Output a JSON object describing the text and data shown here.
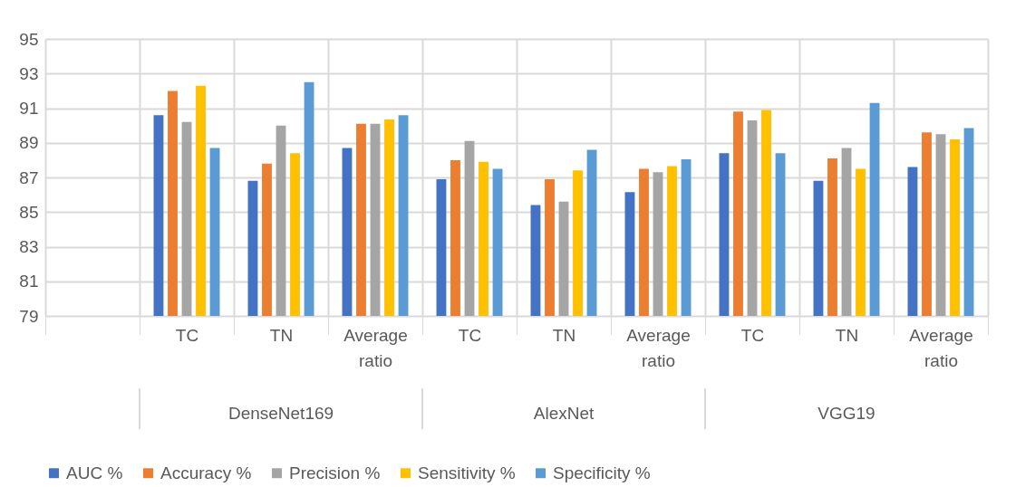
{
  "chart_data": {
    "type": "bar",
    "categories": [
      null,
      "TC",
      "TN",
      "Average ratio",
      "TC",
      "TN",
      "Average ratio",
      "TC",
      "TN",
      "Average ratio"
    ],
    "annotations": [
      "DenseNet169",
      "AlexNet",
      "VGG19"
    ],
    "series": [
      {
        "name": "AUC %",
        "color": "#4472c4",
        "values": [
          null,
          90.6,
          86.8,
          88.7,
          86.9,
          85.4,
          86.15,
          88.4,
          86.8,
          87.6
        ]
      },
      {
        "name": "Accuracy %",
        "color": "#ed7d31",
        "values": [
          null,
          92.0,
          87.8,
          90.1,
          88.0,
          86.9,
          87.5,
          90.8,
          88.1,
          89.6
        ]
      },
      {
        "name": "Precision %",
        "color": "#a5a5a5",
        "values": [
          null,
          90.2,
          90.0,
          90.1,
          89.1,
          85.6,
          87.3,
          90.3,
          88.7,
          89.5
        ]
      },
      {
        "name": "Sensitivity %",
        "color": "#ffc000",
        "values": [
          null,
          92.3,
          88.4,
          90.35,
          87.9,
          87.4,
          87.65,
          90.9,
          87.5,
          89.2
        ]
      },
      {
        "name": "Specificity %",
        "color": "#5b9bd5",
        "values": [
          null,
          88.7,
          92.5,
          90.6,
          87.5,
          88.6,
          88.05,
          88.4,
          91.3,
          89.85
        ]
      }
    ],
    "ylim": [
      79,
      95
    ],
    "yticks": [
      79,
      81,
      83,
      85,
      87,
      89,
      91,
      93,
      95
    ],
    "grid": true,
    "legend": "bottom"
  }
}
